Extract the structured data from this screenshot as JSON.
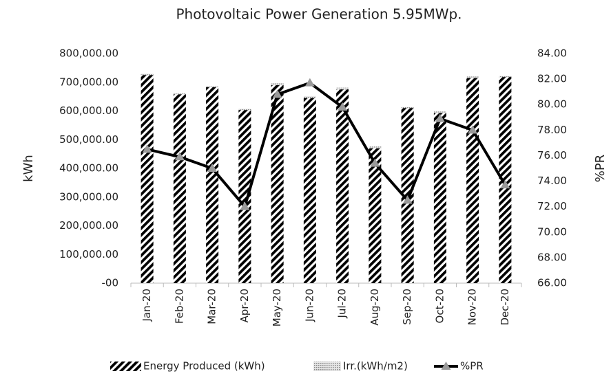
{
  "chart_data": {
    "type": "bar_line",
    "title": "Photovoltaic Power Generation 5.95MWp.",
    "y_label": "kWh",
    "y2_label": "%PR",
    "categories": [
      "Jan-20",
      "Feb-20",
      "Mar-20",
      "Apr-20",
      "May-20",
      "Jun-20",
      "Jul-20",
      "Aug-20",
      "Sep-20",
      "Oct-20",
      "Nov-20",
      "Dec-20"
    ],
    "series": [
      {
        "name": "Energy Produced (kWh)",
        "color": "#000000",
        "type": "bar",
        "pattern": "hatch",
        "values": [
          725000,
          658000,
          683000,
          603000,
          690000,
          645000,
          675000,
          470000,
          610000,
          593000,
          715000,
          718000
        ]
      },
      {
        "name": "Irr.(kWh/m2)",
        "color": "#9a9a9a",
        "type": "bar",
        "pattern": "dots",
        "values": [
          730000,
          662000,
          687000,
          608000,
          697000,
          652000,
          682000,
          476000,
          614000,
          598000,
          720000,
          722000
        ]
      },
      {
        "name": "%PR",
        "color": "#000000",
        "marker_color": "#9a9a9a",
        "type": "line",
        "axis": "y2",
        "values": [
          76.5,
          75.9,
          75.0,
          72.0,
          80.8,
          81.7,
          79.8,
          75.4,
          72.5,
          78.9,
          78.0,
          73.7
        ]
      }
    ],
    "ylim": [
      0,
      800000
    ],
    "yticks": [
      {
        "value": 0,
        "label": "-00"
      },
      {
        "value": 100000,
        "label": "100,000.00"
      },
      {
        "value": 200000,
        "label": "200,000.00"
      },
      {
        "value": 300000,
        "label": "300,000.00"
      },
      {
        "value": 400000,
        "label": "400,000.00"
      },
      {
        "value": 500000,
        "label": "500,000.00"
      },
      {
        "value": 600000,
        "label": "600,000.00"
      },
      {
        "value": 700000,
        "label": "700,000.00"
      },
      {
        "value": 800000,
        "label": "800,000.00"
      }
    ],
    "y2lim": [
      66,
      84
    ],
    "y2ticks": [
      {
        "value": 66,
        "label": "66.00"
      },
      {
        "value": 68,
        "label": "68.00"
      },
      {
        "value": 70,
        "label": "70.00"
      },
      {
        "value": 72,
        "label": "72.00"
      },
      {
        "value": 74,
        "label": "74.00"
      },
      {
        "value": 76,
        "label": "76.00"
      },
      {
        "value": 78,
        "label": "78.00"
      },
      {
        "value": 80,
        "label": "80.00"
      },
      {
        "value": 82,
        "label": "82.00"
      },
      {
        "value": 84,
        "label": "84.00"
      }
    ],
    "grid": false
  }
}
